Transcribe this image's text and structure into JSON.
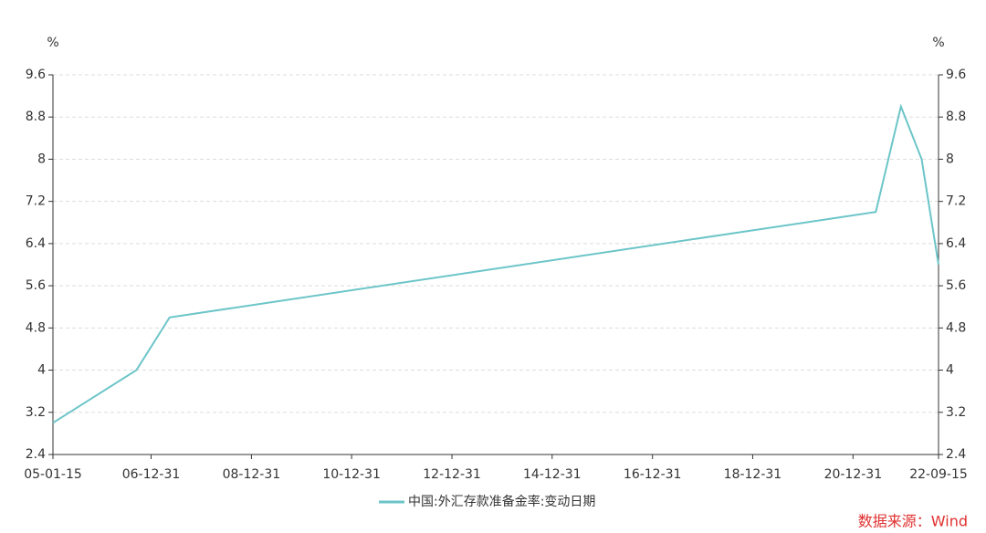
{
  "chart_data": {
    "type": "line",
    "y_unit": "%",
    "y2_unit": "%",
    "x": [
      "2005-01-15",
      "2006-09-15",
      "2007-05-15",
      "2021-06-15",
      "2021-12-15",
      "2022-05-15",
      "2022-09-15"
    ],
    "series": [
      {
        "name": "中国:外汇存款准备金率:变动日期",
        "color": "#6cc5c8",
        "values": [
          3,
          4,
          5,
          7,
          9,
          8,
          6
        ]
      }
    ],
    "xlim": [
      "2005-01-15",
      "2022-09-15"
    ],
    "xticks": [
      {
        "value": "2005-01-15",
        "label": "05-01-15"
      },
      {
        "value": "2006-12-31",
        "label": "06-12-31"
      },
      {
        "value": "2008-12-31",
        "label": "08-12-31"
      },
      {
        "value": "2010-12-31",
        "label": "10-12-31"
      },
      {
        "value": "2012-12-31",
        "label": "12-12-31"
      },
      {
        "value": "2014-12-31",
        "label": "14-12-31"
      },
      {
        "value": "2016-12-31",
        "label": "16-12-31"
      },
      {
        "value": "2018-12-31",
        "label": "18-12-31"
      },
      {
        "value": "2020-12-31",
        "label": "20-12-31"
      },
      {
        "value": "2022-09-15",
        "label": "22-09-15"
      }
    ],
    "ylim": [
      2.4,
      9.6
    ],
    "yticks": [
      2.4,
      3.2,
      4,
      4.8,
      5.6,
      6.4,
      7.2,
      8,
      8.8,
      9.6
    ],
    "y2lim": [
      2.4,
      9.6
    ],
    "y2ticks": [
      2.4,
      3.2,
      4,
      4.8,
      5.6,
      6.4,
      7.2,
      8,
      8.8,
      9.6
    ],
    "grid": true,
    "legend": "bottom",
    "source": "数据来源：Wind"
  }
}
